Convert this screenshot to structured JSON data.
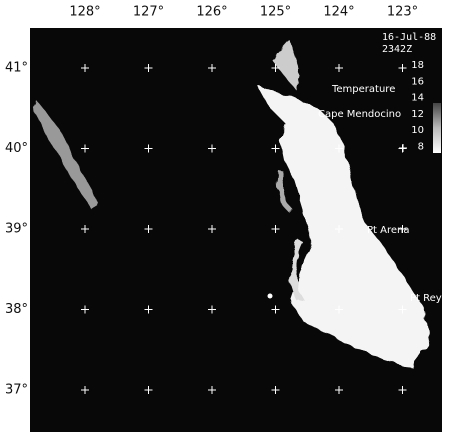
{
  "map": {
    "lon_labels": [
      "128°",
      "127°",
      "126°",
      "125°",
      "124°",
      "123°"
    ],
    "lat_labels": [
      "41°",
      "40°",
      "39°",
      "38°",
      "37°"
    ]
  },
  "annotation": {
    "date": "16-Jul-88",
    "time": "2342Z"
  },
  "legend": {
    "title": "Temperature",
    "labels": [
      "18",
      "16",
      "14",
      "12",
      "10",
      "8"
    ]
  },
  "places": [
    "Cape Mendocino",
    "Pt Arena",
    "Pt Reyes"
  ]
}
